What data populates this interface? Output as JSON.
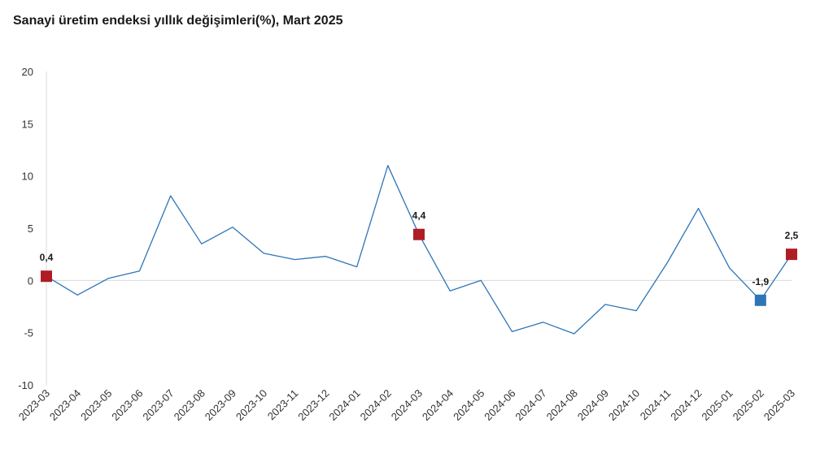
{
  "chart_data": {
    "type": "line",
    "title": "Sanayi üretim endeksi yıllık değişimleri(%), Mart 2025",
    "xlabel": "",
    "ylabel": "",
    "ylim": [
      -10,
      20
    ],
    "yticks": [
      20,
      15,
      10,
      5,
      0,
      -5,
      -10
    ],
    "grid": false,
    "categories": [
      "2023-03",
      "2023-04",
      "2023-05",
      "2023-06",
      "2023-07",
      "2023-08",
      "2023-09",
      "2023-10",
      "2023-11",
      "2023-12",
      "2024-01",
      "2024-02",
      "2024-03",
      "2024-04",
      "2024-05",
      "2024-06",
      "2024-07",
      "2024-08",
      "2024-09",
      "2024-10",
      "2024-11",
      "2024-12",
      "2025-01",
      "2025-02",
      "2025-03"
    ],
    "series": [
      {
        "values": [
          0.4,
          -1.4,
          0.2,
          0.9,
          8.1,
          3.5,
          5.1,
          2.6,
          2.0,
          2.3,
          1.3,
          11.0,
          4.4,
          -1.0,
          0.0,
          -4.9,
          -4.0,
          -5.1,
          -2.3,
          -2.9,
          1.7,
          6.9,
          1.2,
          -1.9,
          2.5
        ],
        "color": "#2e75b6"
      }
    ],
    "markers": [
      {
        "index": 0,
        "label": "0,4",
        "color": "#b01c23"
      },
      {
        "index": 12,
        "label": "4,4",
        "color": "#b01c23"
      },
      {
        "index": 23,
        "label": "-1,9",
        "color": "#2e75b6"
      },
      {
        "index": 24,
        "label": "2,5",
        "color": "#b01c23"
      }
    ]
  }
}
